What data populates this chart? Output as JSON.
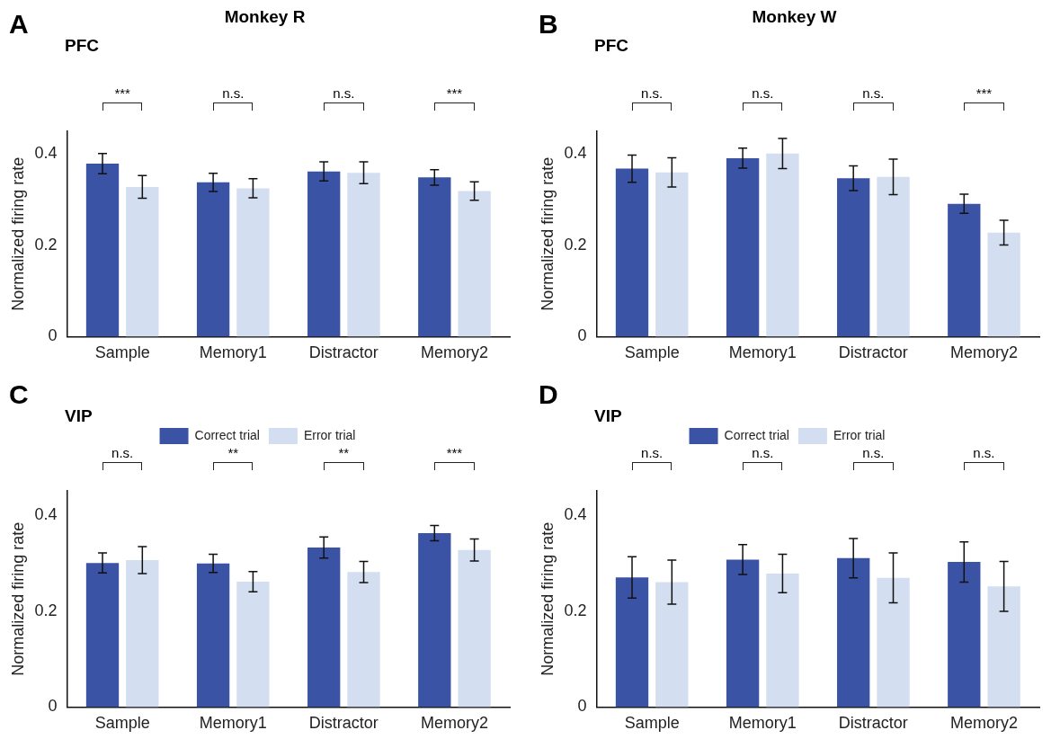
{
  "chart_data": [
    {
      "type": "bar",
      "title": "Monkey R",
      "subtitle": "PFC",
      "ylabel": "Normalized firing rate",
      "categories": [
        "Sample",
        "Memory1",
        "Distractor",
        "Memory2"
      ],
      "series": [
        {
          "color": "#3a53a4",
          "values": [
            0.379,
            0.338,
            0.362,
            0.349
          ],
          "errors": [
            0.022,
            0.02,
            0.021,
            0.017
          ]
        },
        {
          "color": "#d3def1",
          "values": [
            0.328,
            0.325,
            0.359,
            0.319
          ],
          "errors": [
            0.025,
            0.021,
            0.024,
            0.02
          ]
        }
      ],
      "ylim": [
        0,
        0.45
      ],
      "yticks": [
        0,
        0.2,
        0.4
      ],
      "grid": false,
      "legend": false,
      "annotations": [
        "A",
        "***",
        "n.s.",
        "n.s.",
        "***"
      ]
    },
    {
      "type": "bar",
      "title": "Monkey W",
      "subtitle": "PFC",
      "ylabel": "Normalized firing rate",
      "categories": [
        "Sample",
        "Memory1",
        "Distractor",
        "Memory2"
      ],
      "series": [
        {
          "color": "#3a53a4",
          "values": [
            0.368,
            0.391,
            0.347,
            0.291
          ],
          "errors": [
            0.03,
            0.022,
            0.027,
            0.021
          ]
        },
        {
          "color": "#d3def1",
          "values": [
            0.36,
            0.401,
            0.35,
            0.228
          ],
          "errors": [
            0.032,
            0.033,
            0.039,
            0.027
          ]
        }
      ],
      "ylim": [
        0,
        0.45
      ],
      "yticks": [
        0,
        0.2,
        0.4
      ],
      "grid": false,
      "legend": false,
      "annotations": [
        "B",
        "n.s.",
        "n.s.",
        "n.s.",
        "***"
      ]
    },
    {
      "type": "bar",
      "subtitle": "VIP",
      "ylabel": "Normalized firing rate",
      "categories": [
        "Sample",
        "Memory1",
        "Distractor",
        "Memory2"
      ],
      "series": [
        {
          "name": "Correct trial",
          "color": "#3a53a4",
          "values": [
            0.3,
            0.299,
            0.332,
            0.362
          ],
          "errors": [
            0.021,
            0.019,
            0.022,
            0.016
          ]
        },
        {
          "name": "Error trial",
          "color": "#d3def1",
          "values": [
            0.306,
            0.261,
            0.281,
            0.327
          ],
          "errors": [
            0.028,
            0.021,
            0.022,
            0.023
          ]
        }
      ],
      "ylim": [
        0,
        0.45
      ],
      "yticks": [
        0,
        0.2,
        0.4
      ],
      "grid": false,
      "legend": "top",
      "annotations": [
        "C",
        "n.s.",
        "**",
        "**",
        "***"
      ]
    },
    {
      "type": "bar",
      "subtitle": "VIP",
      "ylabel": "Normalized firing rate",
      "categories": [
        "Sample",
        "Memory1",
        "Distractor",
        "Memory2"
      ],
      "series": [
        {
          "name": "Correct trial",
          "color": "#3a53a4",
          "values": [
            0.27,
            0.307,
            0.31,
            0.302
          ],
          "errors": [
            0.043,
            0.031,
            0.041,
            0.042
          ]
        },
        {
          "name": "Error trial",
          "color": "#d3def1",
          "values": [
            0.26,
            0.278,
            0.269,
            0.251
          ],
          "errors": [
            0.046,
            0.04,
            0.052,
            0.052
          ]
        }
      ],
      "ylim": [
        0,
        0.45
      ],
      "yticks": [
        0,
        0.2,
        0.4
      ],
      "grid": false,
      "legend": "top",
      "annotations": [
        "D",
        "n.s.",
        "n.s.",
        "n.s.",
        "n.s."
      ]
    }
  ]
}
